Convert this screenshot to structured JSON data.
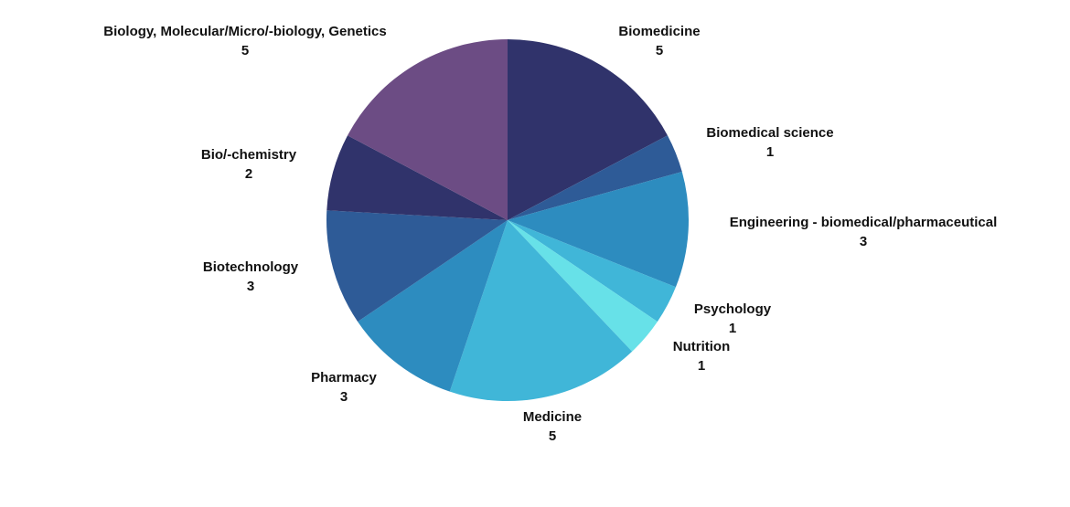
{
  "chart_data": {
    "type": "pie",
    "categories": [
      "Biomedicine",
      "Biomedical science",
      "Engineering - biomedical/pharmaceutical",
      "Psychology",
      "Nutrition",
      "Medicine",
      "Pharmacy",
      "Biotechnology",
      "Bio/-chemistry",
      "Biology, Molecular/Micro/-biology, Genetics"
    ],
    "values": [
      5,
      1,
      3,
      1,
      1,
      5,
      3,
      3,
      2,
      5
    ],
    "colors": [
      "#30336b",
      "#2e5b97",
      "#2d8cbf",
      "#40b6d8",
      "#67e1e8",
      "#40b6d8",
      "#2d8cbf",
      "#2e5b97",
      "#30336b",
      "#6c4c84"
    ],
    "legend": "none"
  }
}
